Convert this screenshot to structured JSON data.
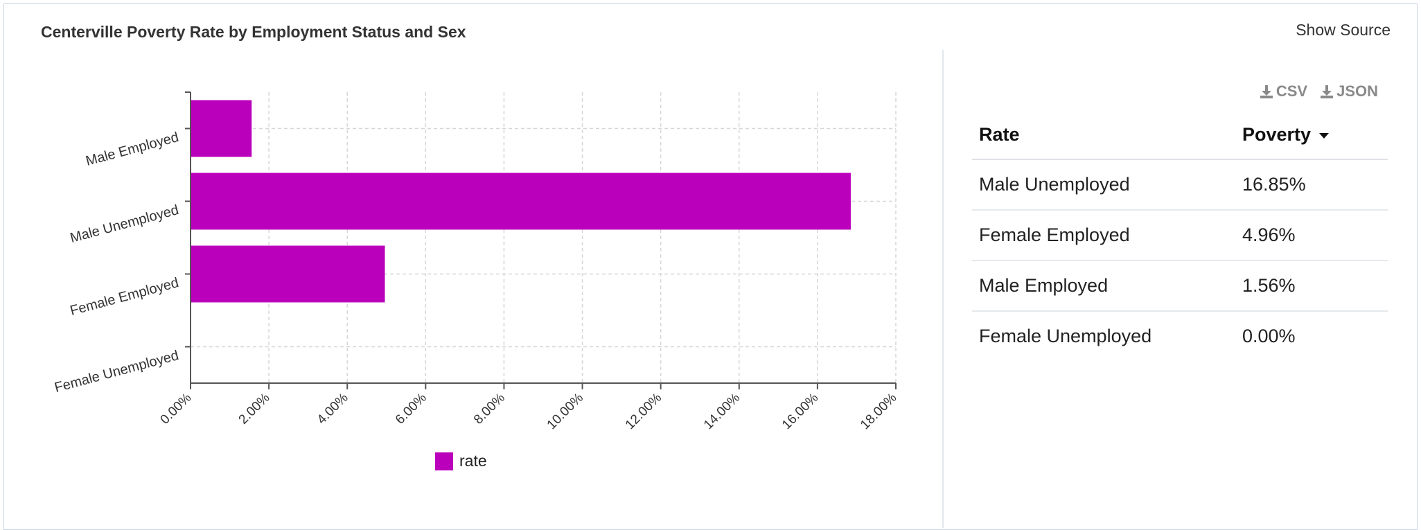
{
  "header": {
    "title": "Centerville Poverty Rate by Employment Status and Sex",
    "show_source": "Show Source"
  },
  "chart_data": {
    "type": "bar",
    "orientation": "horizontal",
    "categories": [
      "Male Employed",
      "Male Unemployed",
      "Female Employed",
      "Female Unemployed"
    ],
    "series": [
      {
        "name": "rate",
        "values": [
          1.56,
          16.85,
          4.96,
          0.0
        ],
        "color": "#bb00bb"
      }
    ],
    "xlim": [
      0,
      18
    ],
    "xticks": [
      "0.00%",
      "2.00%",
      "4.00%",
      "6.00%",
      "8.00%",
      "10.00%",
      "12.00%",
      "14.00%",
      "16.00%",
      "18.00%"
    ],
    "grid": true,
    "legend": "bottom-center"
  },
  "downloads": {
    "csv": "CSV",
    "json": "JSON"
  },
  "table": {
    "columns": [
      "Rate",
      "Poverty"
    ],
    "sorted_column": "Poverty",
    "rows": [
      {
        "label": "Male Unemployed",
        "value": "16.85%"
      },
      {
        "label": "Female Employed",
        "value": "4.96%"
      },
      {
        "label": "Male Employed",
        "value": "1.56%"
      },
      {
        "label": "Female Unemployed",
        "value": "0.00%"
      }
    ]
  }
}
